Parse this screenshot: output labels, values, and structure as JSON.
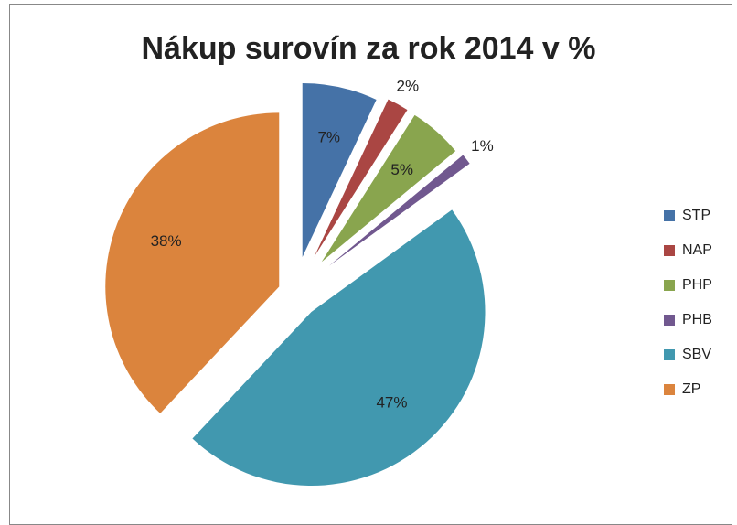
{
  "chart_data": {
    "type": "pie",
    "title": "Nákup surovín za rok 2014 v %",
    "categories": [
      "STP",
      "NAP",
      "PHP",
      "PHB",
      "SBV",
      "ZP"
    ],
    "values": [
      7,
      2,
      5,
      1,
      47,
      38
    ],
    "value_labels": [
      "7%",
      "2%",
      "5%",
      "1%",
      "47%",
      "38%"
    ],
    "colors": [
      "#4572a7",
      "#aa4643",
      "#89a54e",
      "#71588f",
      "#4198af",
      "#db843d"
    ],
    "legend": "right"
  }
}
